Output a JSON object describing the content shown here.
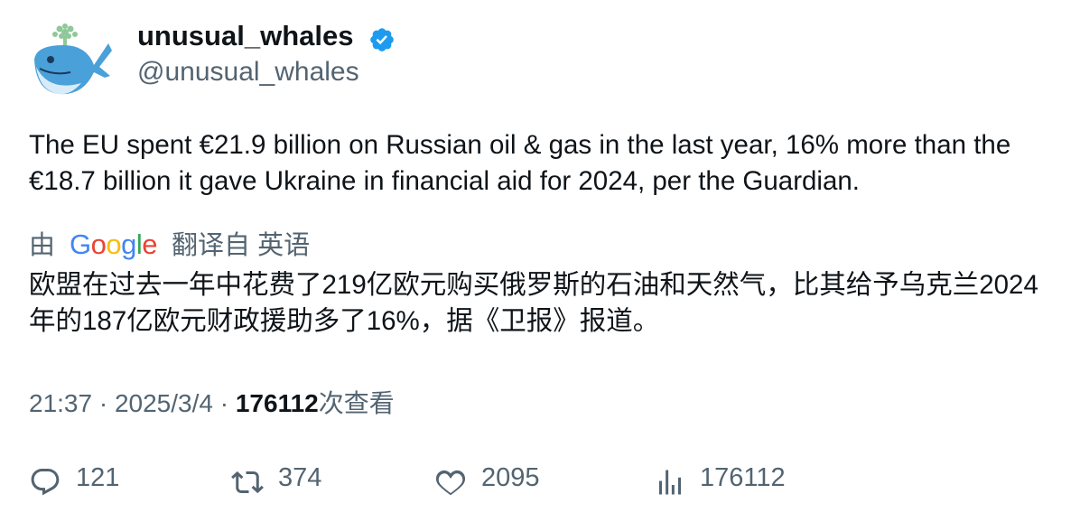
{
  "author": {
    "name": "unusual_whales",
    "handle": "@unusual_whales"
  },
  "text": "The EU spent €21.9 billion on Russian oil & gas in the last year, 16% more than the €18.7 billion it gave Ukraine in financial aid for 2024, per the Guardian.",
  "translation": {
    "prefix": "由",
    "provider": "Google",
    "suffix": "翻译自 英语",
    "text": "欧盟在过去一年中花费了219亿欧元购买俄罗斯的石油和天然气，比其给予乌克兰2024年的187亿欧元财政援助多了16%，据《卫报》报道。"
  },
  "meta": {
    "time": "21:37",
    "separator": "·",
    "date": "2025/3/4",
    "views": "176112",
    "views_label": "次查看"
  },
  "actions": {
    "replies": "121",
    "retweets": "374",
    "likes": "2095",
    "views": "176112"
  }
}
